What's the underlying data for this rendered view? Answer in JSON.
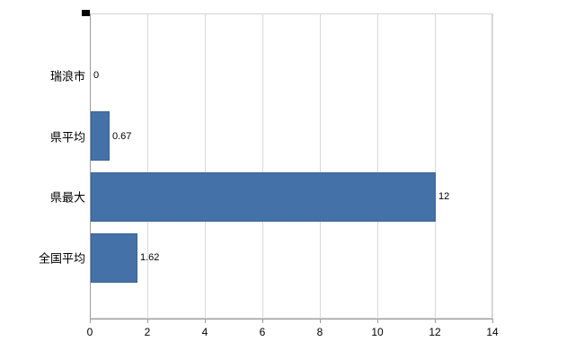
{
  "chart_data": {
    "type": "bar",
    "orientation": "horizontal",
    "title": "",
    "xlabel": "",
    "ylabel": "",
    "categories": [
      "瑞浪市",
      "県平均",
      "県最大",
      "全国平均"
    ],
    "values": [
      0,
      0.67,
      12,
      1.62
    ],
    "value_labels": [
      "0",
      "0.67",
      "12",
      "1.62"
    ],
    "xlim": [
      0,
      14
    ],
    "x_ticks": [
      0,
      2,
      4,
      6,
      8,
      10,
      12,
      14
    ],
    "grid": true,
    "legend": false,
    "colors": {
      "bar_fill": "#4472a8",
      "bar_border": "#3a6497",
      "gridline": "#d9d9d9",
      "plot_border": "#d3d3d3",
      "axis": "#9b9b9b",
      "text": "#000000",
      "background": "#ffffff"
    }
  }
}
